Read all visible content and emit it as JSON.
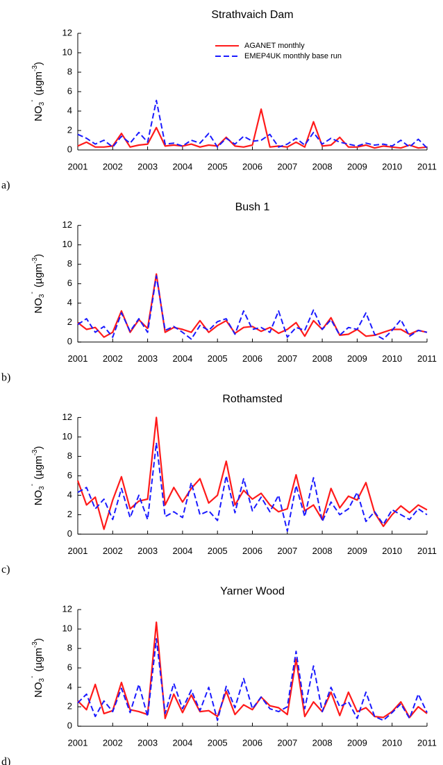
{
  "chart_data": [
    {
      "type": "line",
      "title": "Strathvaich Dam",
      "panel_label": "a)",
      "y_label": {
        "base": "NO",
        "sub": "3",
        "sup": "-",
        "unit": "(µgm",
        "unit_sup": "-3",
        "close": ")"
      },
      "legend": "upper-right",
      "x": [
        2001,
        2001.25,
        2001.5,
        2001.75,
        2002,
        2002.25,
        2002.5,
        2002.75,
        2003,
        2003.25,
        2003.5,
        2003.75,
        2004,
        2004.25,
        2004.5,
        2004.75,
        2005,
        2005.25,
        2005.5,
        2005.75,
        2006,
        2006.25,
        2006.5,
        2006.75,
        2007,
        2007.25,
        2007.5,
        2007.75,
        2008,
        2008.25,
        2008.5,
        2008.75,
        2009,
        2009.25,
        2009.5,
        2009.75,
        2010,
        2010.25,
        2010.5,
        2010.75,
        2011
      ],
      "series": [
        {
          "name": "AGANET monthly",
          "color": "#ff1a1a",
          "line_style": "solid",
          "values": [
            0.4,
            0.8,
            0.3,
            0.3,
            0.4,
            1.7,
            0.3,
            0.5,
            0.6,
            2.3,
            0.4,
            0.5,
            0.4,
            0.6,
            0.3,
            0.5,
            0.4,
            1.3,
            0.4,
            0.3,
            0.5,
            4.2,
            0.3,
            0.4,
            0.3,
            0.8,
            0.3,
            2.9,
            0.4,
            0.5,
            1.3,
            0.3,
            0.3,
            0.5,
            0.2,
            0.4,
            0.3,
            0.2,
            0.5,
            0.2,
            0.3
          ]
        },
        {
          "name": "EMEP4UK monthly base run",
          "color": "#1a1aff",
          "line_style": "dashed",
          "values": [
            1.6,
            1.2,
            0.6,
            1.0,
            0.3,
            1.4,
            0.7,
            1.8,
            0.8,
            5.1,
            0.6,
            0.7,
            0.4,
            1.0,
            0.7,
            1.7,
            0.3,
            1.2,
            0.6,
            1.4,
            0.9,
            1.0,
            1.6,
            0.3,
            0.6,
            1.2,
            0.5,
            1.8,
            0.6,
            1.2,
            0.8,
            0.6,
            0.4,
            0.7,
            0.5,
            0.6,
            0.4,
            1.0,
            0.3,
            1.1,
            0.2
          ]
        }
      ],
      "xlim": [
        2001,
        2011
      ],
      "xticks": [
        2001,
        2002,
        2003,
        2004,
        2005,
        2006,
        2007,
        2008,
        2009,
        2010,
        2011
      ],
      "ylim": [
        0,
        12
      ],
      "yticks": [
        0,
        2,
        4,
        6,
        8,
        10,
        12
      ]
    },
    {
      "type": "line",
      "title": "Bush 1",
      "panel_label": "b)",
      "y_label": {
        "base": "NO",
        "sub": "3",
        "sup": "-",
        "unit": "(µgm",
        "unit_sup": "-3",
        "close": ")"
      },
      "x": [
        2001,
        2001.25,
        2001.5,
        2001.75,
        2002,
        2002.25,
        2002.5,
        2002.75,
        2003,
        2003.25,
        2003.5,
        2003.75,
        2004,
        2004.25,
        2004.5,
        2004.75,
        2005,
        2005.25,
        2005.5,
        2005.75,
        2006,
        2006.25,
        2006.5,
        2006.75,
        2007,
        2007.25,
        2007.5,
        2007.75,
        2008,
        2008.25,
        2008.5,
        2008.75,
        2009,
        2009.25,
        2009.5,
        2009.75,
        2010,
        2010.25,
        2010.5,
        2010.75,
        2011
      ],
      "series": [
        {
          "name": "AGANET monthly",
          "color": "#ff1a1a",
          "line_style": "solid",
          "values": [
            2.0,
            1.3,
            1.5,
            0.5,
            1.0,
            3.2,
            1.0,
            2.3,
            1.4,
            7.0,
            1.0,
            1.5,
            1.3,
            1.0,
            2.2,
            1.0,
            1.7,
            2.2,
            0.9,
            1.5,
            1.6,
            1.1,
            1.5,
            0.9,
            1.3,
            2.0,
            0.6,
            2.2,
            1.3,
            2.5,
            0.7,
            0.8,
            1.3,
            0.6,
            0.7,
            1.0,
            1.3,
            1.3,
            0.8,
            1.2,
            1.0
          ]
        },
        {
          "name": "EMEP4UK monthly base run",
          "color": "#1a1aff",
          "line_style": "dashed",
          "values": [
            1.8,
            2.4,
            1.0,
            1.6,
            0.5,
            3.0,
            1.1,
            2.4,
            1.0,
            6.8,
            1.2,
            1.6,
            1.0,
            0.3,
            1.7,
            1.2,
            2.1,
            2.4,
            0.8,
            3.2,
            1.3,
            1.5,
            1.0,
            3.2,
            0.5,
            1.5,
            1.2,
            3.3,
            1.3,
            2.3,
            0.7,
            1.5,
            1.3,
            3.0,
            0.8,
            0.3,
            1.2,
            2.3,
            0.6,
            1.2,
            1.0
          ]
        }
      ],
      "xlim": [
        2001,
        2011
      ],
      "xticks": [
        2001,
        2002,
        2003,
        2004,
        2005,
        2006,
        2007,
        2008,
        2009,
        2010,
        2011
      ],
      "ylim": [
        0,
        12
      ],
      "yticks": [
        0,
        2,
        4,
        6,
        8,
        10,
        12
      ]
    },
    {
      "type": "line",
      "title": "Rothamsted",
      "panel_label": "c)",
      "y_label": {
        "base": "NO",
        "sub": "3",
        "sup": "-",
        "unit": "(µgm",
        "unit_sup": "-3",
        "close": ")"
      },
      "x": [
        2001,
        2001.25,
        2001.5,
        2001.75,
        2002,
        2002.25,
        2002.5,
        2002.75,
        2003,
        2003.25,
        2003.5,
        2003.75,
        2004,
        2004.25,
        2004.5,
        2004.75,
        2005,
        2005.25,
        2005.5,
        2005.75,
        2006,
        2006.25,
        2006.5,
        2006.75,
        2007,
        2007.25,
        2007.5,
        2007.75,
        2008,
        2008.25,
        2008.5,
        2008.75,
        2009,
        2009.25,
        2009.5,
        2009.75,
        2010,
        2010.25,
        2010.5,
        2010.75,
        2011
      ],
      "series": [
        {
          "name": "AGANET monthly",
          "color": "#ff1a1a",
          "line_style": "solid",
          "values": [
            5.5,
            3.0,
            3.8,
            0.5,
            3.5,
            5.9,
            2.6,
            3.4,
            3.6,
            12.0,
            3.0,
            4.8,
            3.3,
            4.7,
            5.7,
            3.2,
            4.0,
            7.5,
            3.0,
            4.5,
            3.6,
            4.2,
            3.0,
            2.3,
            2.6,
            6.1,
            2.4,
            3.0,
            1.5,
            4.7,
            2.7,
            3.9,
            3.5,
            5.3,
            2.2,
            0.8,
            2.0,
            2.9,
            2.2,
            3.0,
            2.5
          ]
        },
        {
          "name": "EMEP4UK monthly base run",
          "color": "#1a1aff",
          "line_style": "dashed",
          "values": [
            4.3,
            4.8,
            2.6,
            3.6,
            1.5,
            4.7,
            1.7,
            4.0,
            1.5,
            9.4,
            1.8,
            2.3,
            1.7,
            5.3,
            2.0,
            2.4,
            1.4,
            6.0,
            2.2,
            5.7,
            2.4,
            3.8,
            2.3,
            4.0,
            0.3,
            5.0,
            1.8,
            5.8,
            1.3,
            3.3,
            2.0,
            2.6,
            4.3,
            1.3,
            2.3,
            1.0,
            2.5,
            2.0,
            1.5,
            2.6,
            2.0
          ]
        }
      ],
      "xlim": [
        2001,
        2011
      ],
      "xticks": [
        2001,
        2002,
        2003,
        2004,
        2005,
        2006,
        2007,
        2008,
        2009,
        2010,
        2011
      ],
      "ylim": [
        0,
        12
      ],
      "yticks": [
        0,
        2,
        4,
        6,
        8,
        10,
        12
      ]
    },
    {
      "type": "line",
      "title": "Yarner Wood",
      "panel_label": "d)",
      "y_label": {
        "base": "NO",
        "sub": "3",
        "sup": "-",
        "unit": "(µgm",
        "unit_sup": "-3",
        "close": ")"
      },
      "x": [
        2001,
        2001.25,
        2001.5,
        2001.75,
        2002,
        2002.25,
        2002.5,
        2002.75,
        2003,
        2003.25,
        2003.5,
        2003.75,
        2004,
        2004.25,
        2004.5,
        2004.75,
        2005,
        2005.25,
        2005.5,
        2005.75,
        2006,
        2006.25,
        2006.5,
        2006.75,
        2007,
        2007.25,
        2007.5,
        2007.75,
        2008,
        2008.25,
        2008.5,
        2008.75,
        2009,
        2009.25,
        2009.5,
        2009.75,
        2010,
        2010.25,
        2010.5,
        2010.75,
        2011
      ],
      "series": [
        {
          "name": "AGANET monthly",
          "color": "#ff1a1a",
          "line_style": "solid",
          "values": [
            2.6,
            1.7,
            4.3,
            1.3,
            1.6,
            4.5,
            1.7,
            1.5,
            1.2,
            10.7,
            0.8,
            3.3,
            1.4,
            3.2,
            1.5,
            1.6,
            1.0,
            3.6,
            1.2,
            2.2,
            1.7,
            3.0,
            2.1,
            1.9,
            1.2,
            6.9,
            1.0,
            2.5,
            1.5,
            3.5,
            1.1,
            3.5,
            1.5,
            1.9,
            1.0,
            0.9,
            1.5,
            2.5,
            0.9,
            2.0,
            1.3
          ]
        },
        {
          "name": "EMEP4UK monthly base run",
          "color": "#1a1aff",
          "line_style": "dashed",
          "values": [
            2.4,
            3.3,
            1.0,
            2.6,
            1.5,
            3.9,
            1.4,
            4.3,
            1.0,
            9.0,
            1.3,
            4.4,
            1.8,
            3.7,
            1.6,
            4.0,
            0.6,
            4.1,
            1.9,
            4.9,
            1.8,
            3.0,
            1.8,
            1.5,
            2.0,
            7.7,
            1.8,
            6.2,
            1.5,
            4.0,
            2.0,
            2.5,
            0.8,
            3.5,
            1.0,
            0.6,
            1.4,
            2.3,
            0.8,
            3.3,
            1.4
          ]
        }
      ],
      "xlim": [
        2001,
        2011
      ],
      "xticks": [
        2001,
        2002,
        2003,
        2004,
        2005,
        2006,
        2007,
        2008,
        2009,
        2010,
        2011
      ],
      "ylim": [
        0,
        12
      ],
      "yticks": [
        0,
        2,
        4,
        6,
        8,
        10,
        12
      ]
    }
  ]
}
